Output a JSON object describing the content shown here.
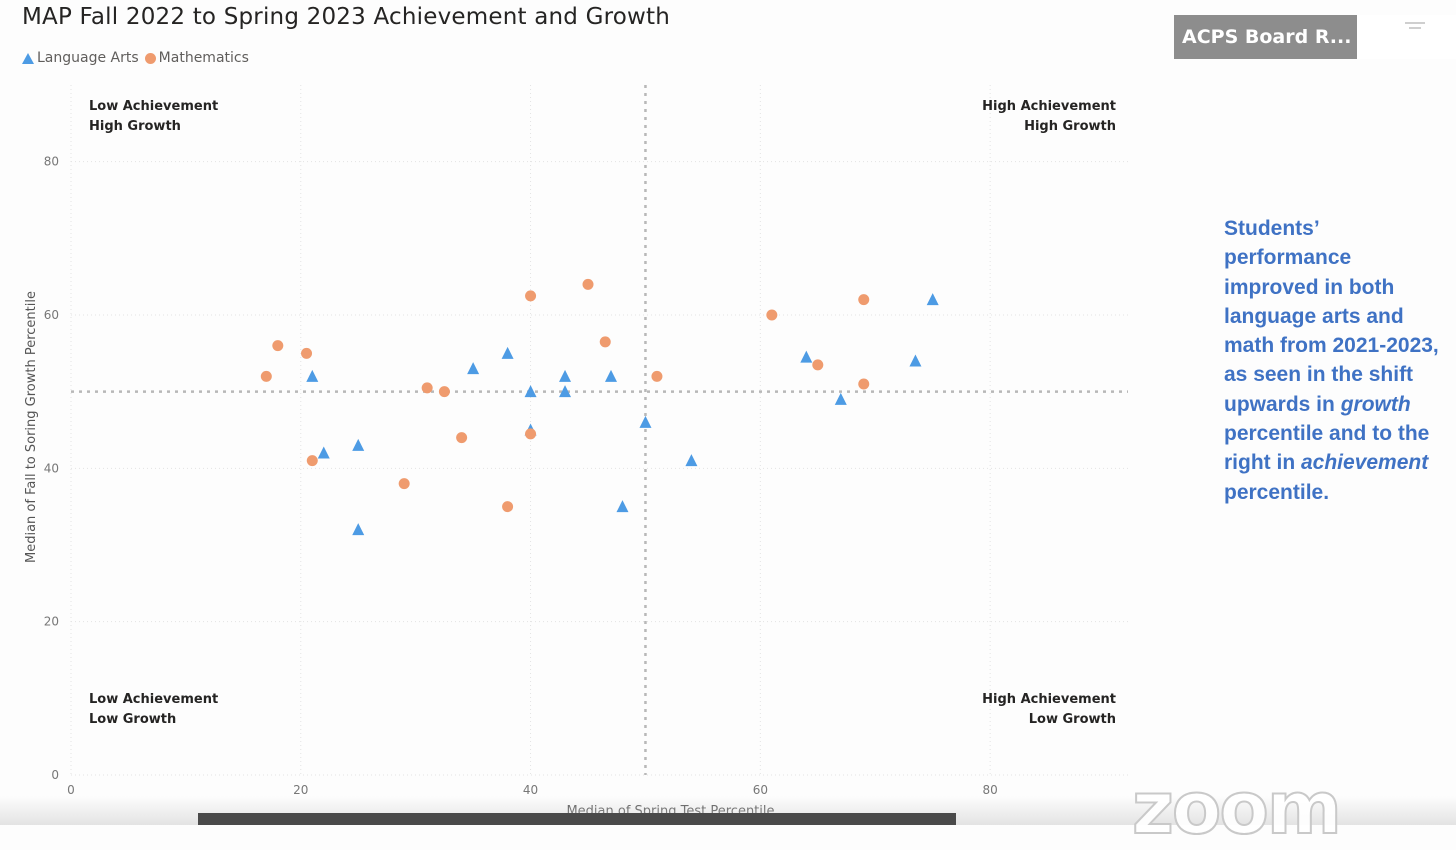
{
  "page": {
    "title": "MAP Fall 2022 to Spring 2023 Achievement and Growth",
    "side_note": {
      "line1": "Students’ performance improved in both language arts and math from 2021-2023, as seen in the shift upwards in",
      "growth_word": "growth",
      "line2": "percentile and to the right in",
      "achievement_word": "achievement",
      "line3": "percentile."
    }
  },
  "zoom": {
    "participant_name": "ACPS Board R...",
    "logo_text": "zoom"
  },
  "legend": {
    "items": [
      {
        "label": "Language Arts",
        "marker": "triangle",
        "color": "#4d9be4"
      },
      {
        "label": "Mathematics",
        "marker": "circle",
        "color": "#ef9b6e"
      }
    ]
  },
  "chart_data": {
    "type": "scatter",
    "title": "MAP Fall 2022 to Spring 2023 Achievement and Growth",
    "xlabel": "Median of Spring Test Percentile",
    "ylabel": "Median of Fall to Soring Growth Percentile",
    "xlim": [
      0,
      92
    ],
    "ylim": [
      0,
      90
    ],
    "xticks": [
      0,
      20,
      40,
      60,
      80
    ],
    "yticks": [
      0,
      20,
      40,
      60,
      80
    ],
    "grid": true,
    "reference_lines": {
      "x": 50,
      "y": 50
    },
    "quadrant_labels": {
      "top_left": [
        "Low Achievement",
        "High Growth"
      ],
      "top_right": [
        "High Achievement",
        "High Growth"
      ],
      "bottom_left": [
        "Low Achievement",
        "Low Growth"
      ],
      "bottom_right": [
        "High Achievement",
        "Low Growth"
      ]
    },
    "legend_position": "top-left",
    "series": [
      {
        "name": "Language Arts",
        "marker": "triangle",
        "color": "#4d9be4",
        "points": [
          [
            21,
            52
          ],
          [
            22,
            42
          ],
          [
            25,
            43
          ],
          [
            25,
            32
          ],
          [
            35,
            53
          ],
          [
            38,
            55
          ],
          [
            40,
            50
          ],
          [
            40,
            45
          ],
          [
            43,
            52
          ],
          [
            43,
            50
          ],
          [
            47,
            52
          ],
          [
            48,
            35
          ],
          [
            50,
            46
          ],
          [
            54,
            41
          ],
          [
            64,
            54.5
          ],
          [
            67,
            49
          ],
          [
            73.5,
            54
          ],
          [
            75,
            62
          ]
        ]
      },
      {
        "name": "Mathematics",
        "marker": "circle",
        "color": "#ef9b6e",
        "points": [
          [
            17,
            52
          ],
          [
            18,
            56
          ],
          [
            20.5,
            55
          ],
          [
            21,
            41
          ],
          [
            29,
            38
          ],
          [
            31,
            50.5
          ],
          [
            32.5,
            50
          ],
          [
            34,
            44
          ],
          [
            38,
            35
          ],
          [
            40,
            62.5
          ],
          [
            40,
            44.5
          ],
          [
            45,
            64
          ],
          [
            46.5,
            56.5
          ],
          [
            51,
            52
          ],
          [
            61,
            60
          ],
          [
            65,
            53.5
          ],
          [
            69,
            62
          ],
          [
            69,
            51
          ]
        ]
      }
    ]
  }
}
